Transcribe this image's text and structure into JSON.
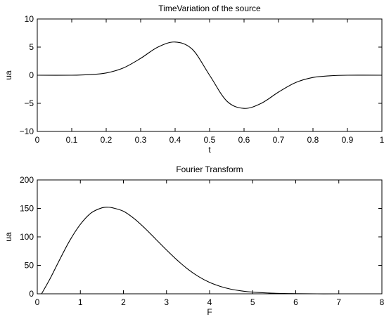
{
  "chart_data": [
    {
      "type": "line",
      "title": "TimeVariation of the source",
      "xlabel": "t",
      "ylabel": "ua",
      "xlim": [
        0,
        1
      ],
      "ylim": [
        -10,
        10
      ],
      "xticks": [
        0,
        0.1,
        0.2,
        0.3,
        0.4,
        0.5,
        0.6,
        0.7,
        0.8,
        0.9,
        1
      ],
      "xtick_labels": [
        "0",
        "0.1",
        "0.2",
        "0.3",
        "0.4",
        "0.5",
        "0.6",
        "0.7",
        "0.8",
        "0.9",
        "1"
      ],
      "yticks": [
        -10,
        -5,
        0,
        5,
        10
      ],
      "ytick_labels": [
        "−10",
        "−5",
        "0",
        "5",
        "10"
      ],
      "grid": false,
      "series": [
        {
          "x": [
            0,
            0.1,
            0.15,
            0.2,
            0.25,
            0.3,
            0.35,
            0.4,
            0.45,
            0.5,
            0.55,
            0.6,
            0.65,
            0.7,
            0.75,
            0.8,
            0.85,
            0.9,
            1
          ],
          "y": [
            0,
            0,
            0.1,
            0.4,
            1.3,
            3.0,
            5.0,
            5.9,
            4.6,
            0,
            -4.6,
            -5.9,
            -5.0,
            -3.0,
            -1.3,
            -0.4,
            -0.1,
            0,
            0
          ]
        }
      ]
    },
    {
      "type": "line",
      "title": "Fourier Transform",
      "xlabel": "F",
      "ylabel": "ua",
      "xlim": [
        0,
        8
      ],
      "ylim": [
        0,
        200
      ],
      "xticks": [
        0,
        1,
        2,
        3,
        4,
        5,
        6,
        7,
        8
      ],
      "xtick_labels": [
        "0",
        "1",
        "2",
        "3",
        "4",
        "5",
        "6",
        "7",
        "8"
      ],
      "yticks": [
        0,
        50,
        100,
        150,
        200
      ],
      "ytick_labels": [
        "0",
        "50",
        "100",
        "150",
        "200"
      ],
      "grid": false,
      "series": [
        {
          "x": [
            0.1,
            0.3,
            0.5,
            0.75,
            1,
            1.25,
            1.5,
            1.65,
            1.75,
            2,
            2.25,
            2.5,
            2.75,
            3,
            3.25,
            3.5,
            3.75,
            4,
            4.25,
            4.5,
            4.75,
            5,
            5.5,
            6,
            6.5,
            7,
            8
          ],
          "y": [
            0,
            27,
            57,
            93,
            122,
            142,
            151,
            152,
            151,
            145,
            132,
            115,
            96,
            77,
            59,
            43,
            30,
            20,
            13,
            8,
            5,
            3,
            1,
            0.3,
            0,
            0,
            0
          ]
        }
      ]
    }
  ]
}
